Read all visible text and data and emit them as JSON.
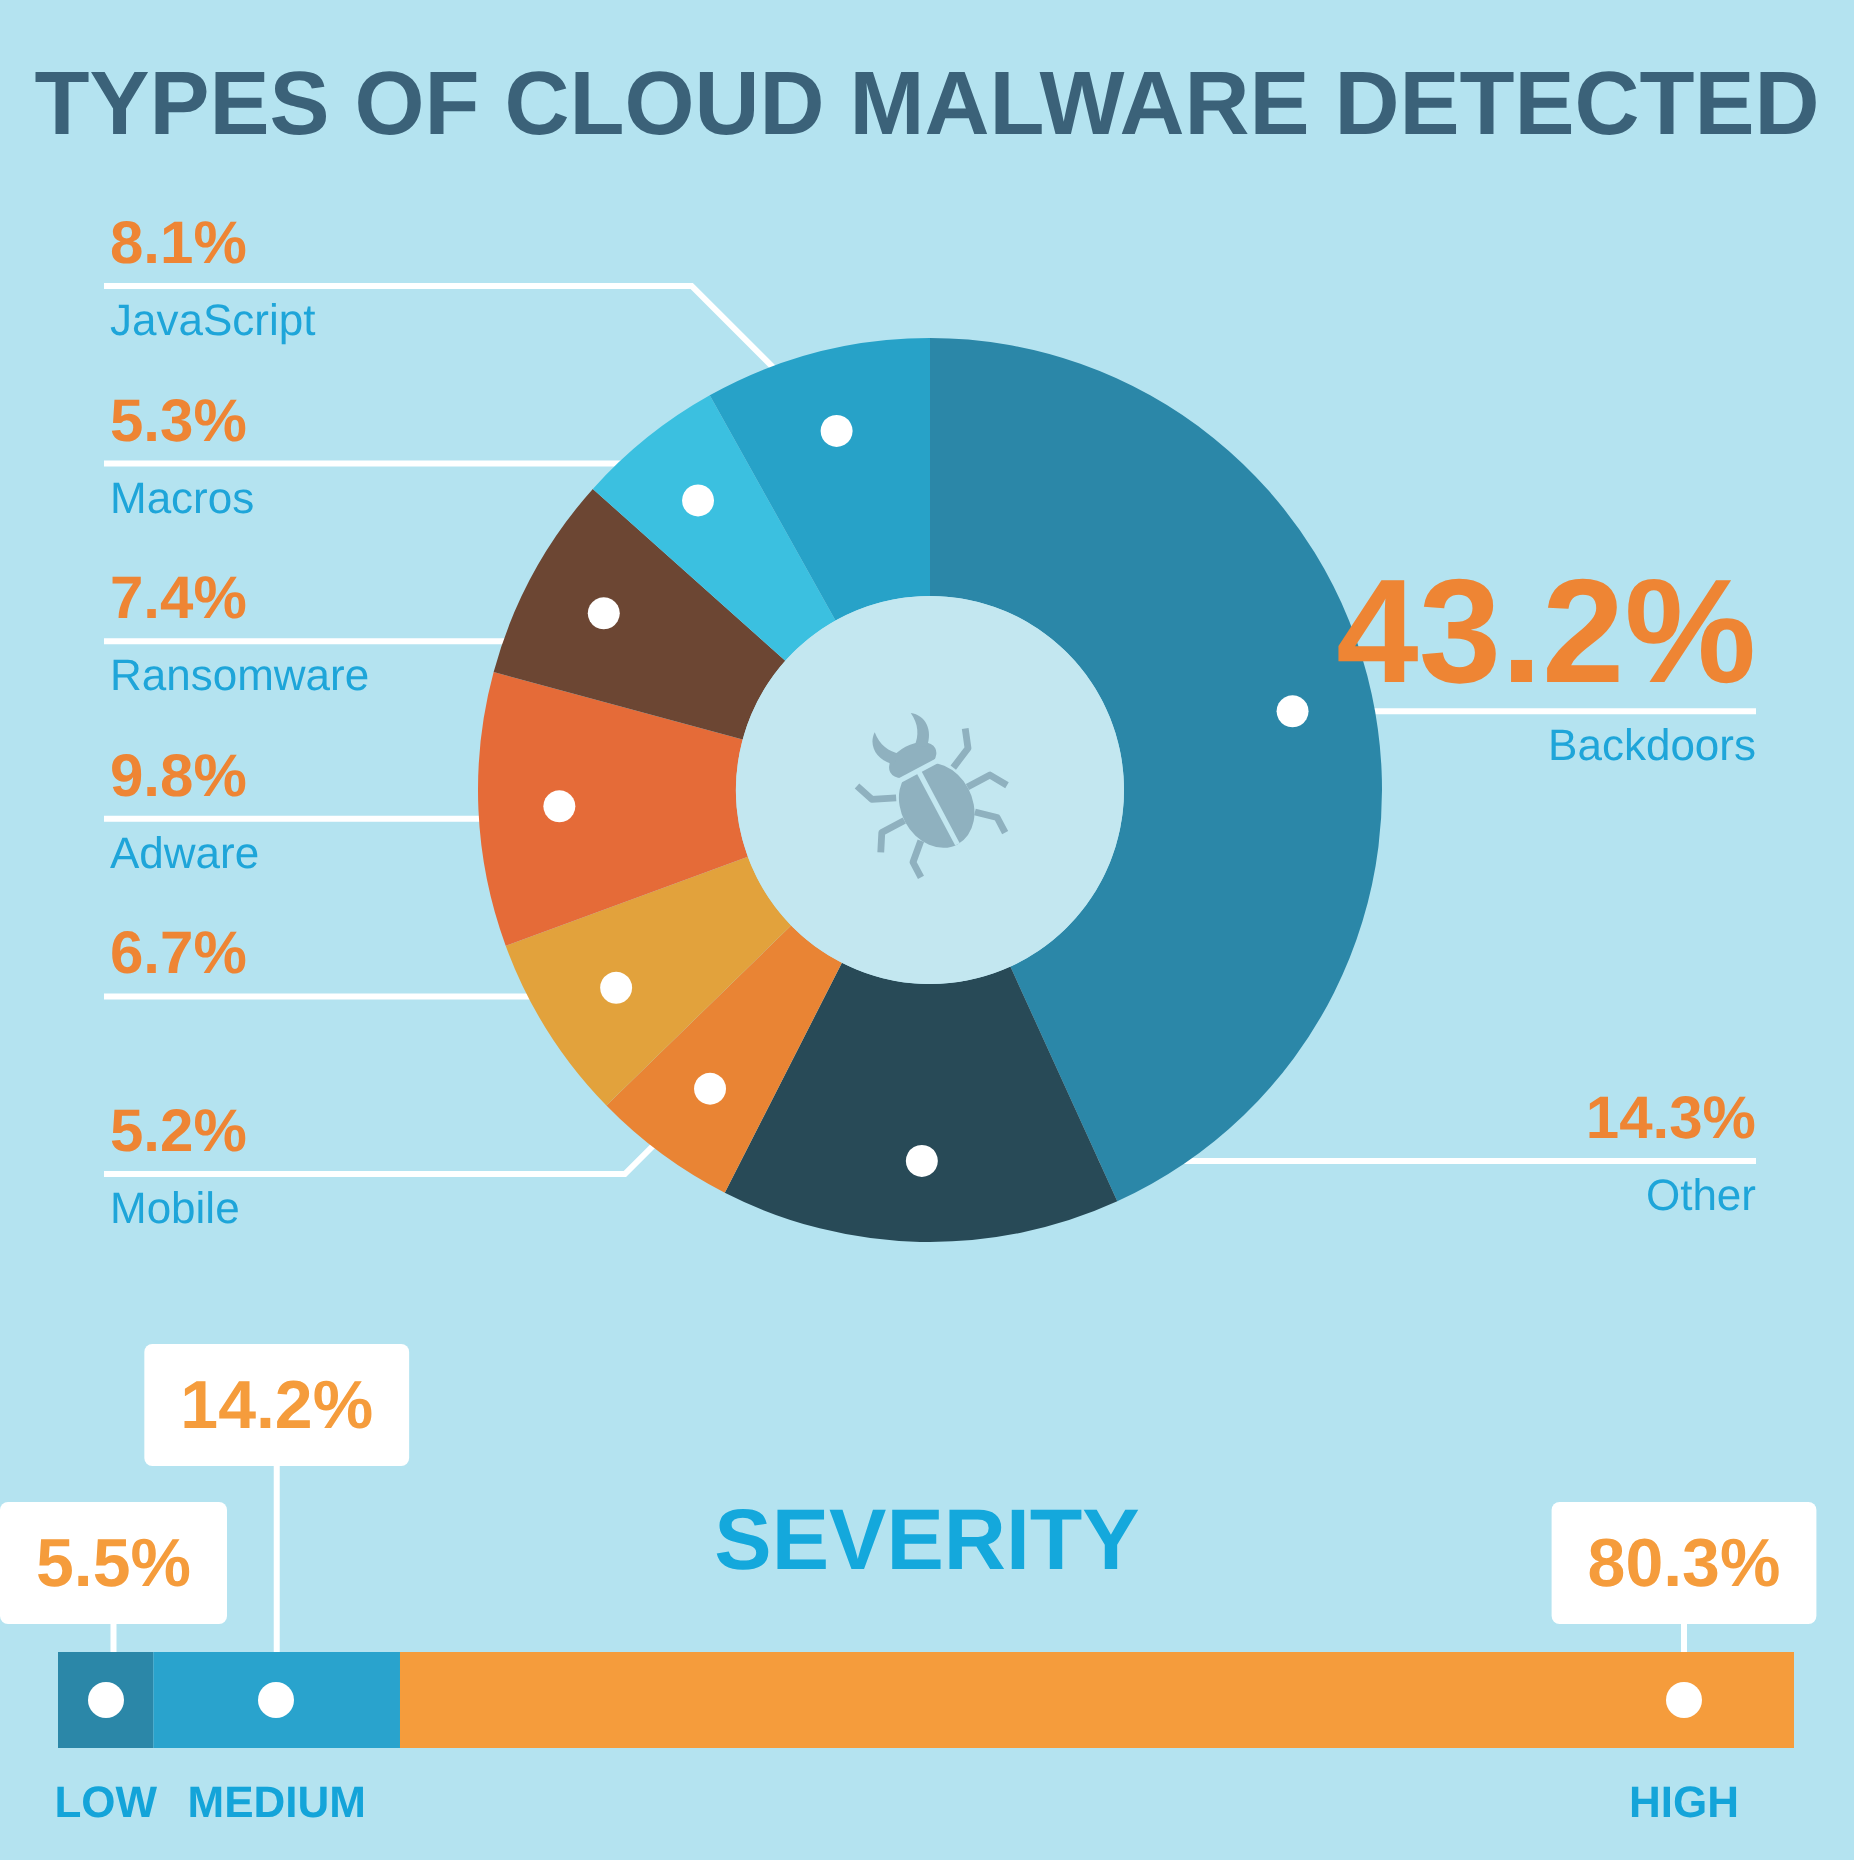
{
  "chart_data": [
    {
      "type": "donut",
      "title": "TYPES OF CLOUD MALWARE DETECTED",
      "categories": [
        "Backdoors",
        "Other",
        "Mobile",
        null,
        "Adware",
        "Ransomware",
        "Macros",
        "JavaScript"
      ],
      "values": [
        43.2,
        14.3,
        5.2,
        6.7,
        9.8,
        7.4,
        5.3,
        8.1
      ],
      "value_labels": [
        "43.2%",
        "14.3%",
        "5.2%",
        "6.7%",
        "9.8%",
        "7.4%",
        "5.3%",
        "8.1%"
      ],
      "colors": [
        "#2b87a8",
        "#284a57",
        "#e98434",
        "#e2a23c",
        "#e56b38",
        "#6c4633",
        "#3bc0e0",
        "#27a2c8"
      ]
    },
    {
      "type": "bar",
      "title": "SEVERITY",
      "orientation": "horizontal",
      "stacked": true,
      "categories": [
        null
      ],
      "xlim": [
        0,
        100
      ],
      "tick_labels": false,
      "series": [
        {
          "name": "LOW",
          "color": "#2b87a8",
          "values": [
            5.5
          ],
          "value_labels": [
            "5.5%"
          ]
        },
        {
          "name": "MEDIUM",
          "color": "#29a3cd",
          "values": [
            14.2
          ],
          "value_labels": [
            "14.2%"
          ]
        },
        {
          "name": "HIGH",
          "color": "#f59c3c",
          "values": [
            80.3
          ],
          "value_labels": [
            "80.3%"
          ]
        }
      ]
    }
  ]
}
